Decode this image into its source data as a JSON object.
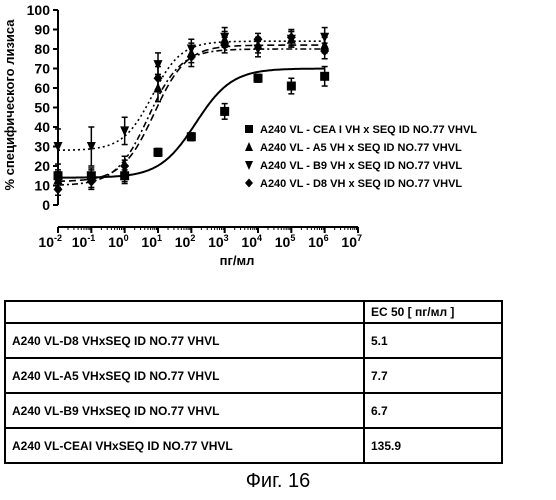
{
  "chart_data": {
    "type": "scatter",
    "xlabel": "пг/мл",
    "ylabel": "% специфического лизиса",
    "xscale": "log",
    "xlim": [
      0.01,
      10000000
    ],
    "ylim": [
      0,
      100
    ],
    "x_ticks": [
      {
        "base": "10",
        "exp": "-2"
      },
      {
        "base": "10",
        "exp": "-1"
      },
      {
        "base": "10",
        "exp": "0"
      },
      {
        "base": "10",
        "exp": "1"
      },
      {
        "base": "10",
        "exp": "2"
      },
      {
        "base": "10",
        "exp": "3"
      },
      {
        "base": "10",
        "exp": "4"
      },
      {
        "base": "10",
        "exp": "5"
      },
      {
        "base": "10",
        "exp": "6"
      },
      {
        "base": "10",
        "exp": "7"
      }
    ],
    "y_ticks": [
      "0",
      "10",
      "20",
      "30",
      "40",
      "50",
      "60",
      "70",
      "80",
      "90",
      "100"
    ],
    "legend_position": "right",
    "series": [
      {
        "name": "A240 VL - CEA I VH x SEQ ID NO.77 VHVL",
        "marker": "square",
        "line": "solid",
        "fit": {
          "bottom": 14,
          "top": 70,
          "ec50": 135.9,
          "hill": 0.8
        },
        "x": [
          0.01,
          0.1,
          1,
          10,
          100,
          1000,
          10000,
          100000,
          1000000
        ],
        "y": [
          15,
          15,
          15,
          27,
          35,
          48,
          65,
          61,
          66
        ],
        "yerr": [
          3,
          3,
          3,
          2,
          2,
          4,
          2,
          4,
          5
        ]
      },
      {
        "name": "A240 VL - A5 VH x SEQ ID NO.77 VHVL",
        "marker": "triangle-up",
        "line": "dashed",
        "fit": {
          "bottom": 12,
          "top": 82,
          "ec50": 7.7,
          "hill": 0.9
        },
        "x": [
          0.01,
          0.1,
          1,
          10,
          100,
          1000,
          10000,
          100000,
          1000000
        ],
        "y": [
          13,
          14,
          17,
          60,
          78,
          85,
          82,
          85,
          82
        ],
        "yerr": [
          4,
          5,
          6,
          7,
          5,
          4,
          4,
          4,
          4
        ]
      },
      {
        "name": "A240 VL - B9 VH x SEQ ID NO.77 VHVL",
        "marker": "triangle-down",
        "line": "dotted",
        "fit": {
          "bottom": 28,
          "top": 84,
          "ec50": 6.7,
          "hill": 1.0
        },
        "x": [
          0.01,
          0.1,
          1,
          10,
          100,
          1000,
          10000,
          100000,
          1000000
        ],
        "y": [
          30,
          30,
          38,
          72,
          80,
          86,
          80,
          85,
          86
        ],
        "yerr": [
          9,
          10,
          7,
          6,
          5,
          5,
          4,
          4,
          5
        ]
      },
      {
        "name": "A240 VL - D8 VH x SEQ ID NO.77 VHVL",
        "marker": "diamond",
        "line": "dashdot",
        "fit": {
          "bottom": 10,
          "top": 80,
          "ec50": 5.1,
          "hill": 0.9
        },
        "x": [
          0.01,
          0.1,
          1,
          10,
          100,
          1000,
          10000,
          100000,
          1000000
        ],
        "y": [
          8,
          12,
          20,
          65,
          76,
          82,
          85,
          86,
          79
        ],
        "yerr": [
          3,
          4,
          5,
          6,
          5,
          4,
          3,
          4,
          4
        ]
      }
    ]
  },
  "table": {
    "header_col1": "",
    "header_col2": "EC 50 [ пг/мл  ]",
    "rows": [
      {
        "label": "A240 VL-D8 VHxSEQ ID NO.77 VHVL",
        "value": "5.1"
      },
      {
        "label": "A240 VL-A5 VHxSEQ ID NO.77 VHVL",
        "value": "7.7"
      },
      {
        "label": "A240 VL-B9 VHxSEQ ID NO.77 VHVL",
        "value": "6.7"
      },
      {
        "label": "A240 VL-CEAI VHxSEQ ID NO.77 VHVL",
        "value": "135.9"
      }
    ]
  },
  "caption": "Фиг. 16"
}
